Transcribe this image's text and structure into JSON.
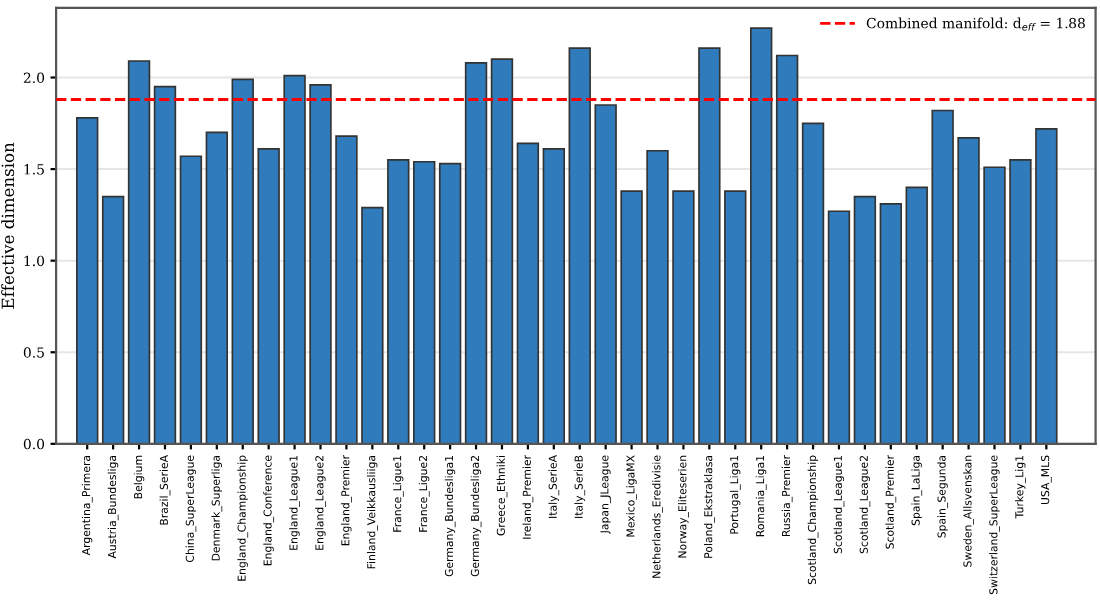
{
  "chart_data": {
    "type": "bar",
    "ylabel": "Effective dimension",
    "categories": [
      "Argentina_Primera",
      "Austria_Bundesliga",
      "Belgium",
      "Brazil_SerieA",
      "China_SuperLeague",
      "Denmark_Superliga",
      "England_Championship",
      "England_Conference",
      "England_League1",
      "England_League2",
      "England_Premier",
      "Finland_Veikkausliiga",
      "France_Ligue1",
      "France_Ligue2",
      "Germany_Bundesliga1",
      "Germany_Bundesliga2",
      "Greece_Ethniki",
      "Ireland_Premier",
      "Italy_SerieA",
      "Italy_SerieB",
      "Japan_JLeague",
      "Mexico_LigaMX",
      "Netherlands_Eredivisie",
      "Norway_Eliteserien",
      "Poland_Ekstraklasa",
      "Portugal_Liga1",
      "Romania_Liga1",
      "Russia_Premier",
      "Scotland_Championship",
      "Scotland_League1",
      "Scotland_League2",
      "Scotland_Premier",
      "Spain_LaLiga",
      "Spain_Segunda",
      "Sweden_Allsvenskan",
      "Switzerland_SuperLeague",
      "Turkey_Lig1",
      "USA_MLS"
    ],
    "values": [
      1.78,
      1.35,
      2.09,
      1.95,
      1.57,
      1.7,
      1.99,
      1.61,
      2.01,
      1.96,
      1.68,
      1.29,
      1.55,
      1.54,
      1.53,
      2.08,
      2.1,
      1.64,
      1.61,
      2.16,
      1.85,
      1.38,
      1.6,
      1.38,
      2.16,
      1.38,
      2.27,
      2.12,
      1.75,
      1.27,
      1.35,
      1.31,
      1.4,
      1.82,
      1.67,
      1.51,
      1.55,
      1.72
    ],
    "color": "#2f7bbb",
    "ylim": [
      0,
      2.38
    ],
    "yticks": [
      {
        "value": 0,
        "label": "0.0"
      },
      {
        "value": 0.5,
        "label": "0.5"
      },
      {
        "value": 1,
        "label": "1.0"
      },
      {
        "value": 1.5,
        "label": "1.5"
      },
      {
        "value": 2,
        "label": "2.0"
      }
    ],
    "ref_lines": [
      {
        "axis": "y",
        "value": 1.88,
        "label": "Combined manifold: d$_{eff}$ = 1.88",
        "color": "#ff0000",
        "line_style": "dashed"
      }
    ],
    "grid": "y",
    "legend": "top right"
  }
}
